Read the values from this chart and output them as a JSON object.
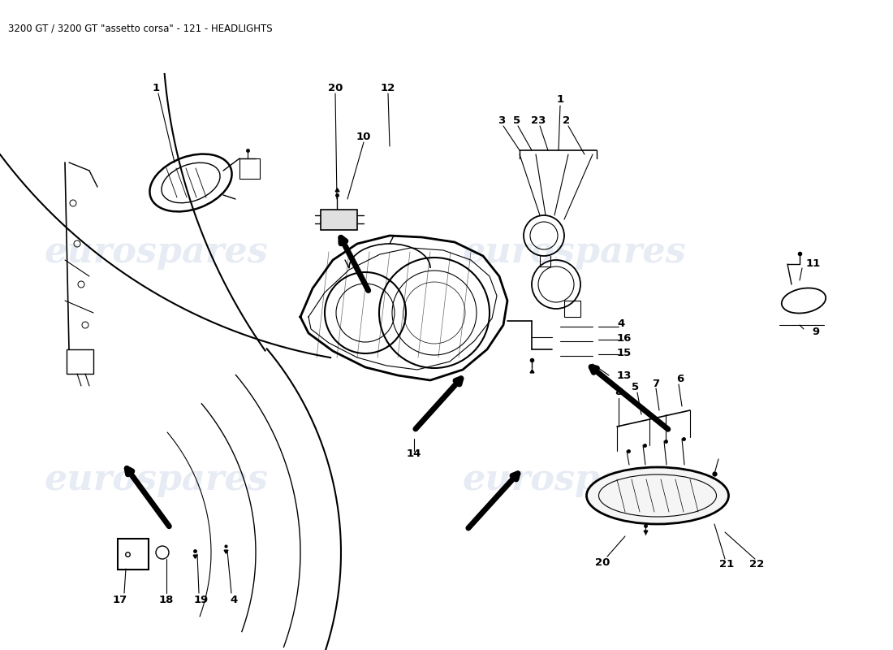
{
  "title": "3200 GT / 3200 GT \"assetto corsa\" - 121 - HEADLIGHTS",
  "title_fontsize": 8.5,
  "title_color": "#000000",
  "bg_color": "#ffffff",
  "watermark_text": "eurospares",
  "watermark_color": "#c8d4e8",
  "watermark_alpha": 0.45,
  "fig_width": 11.0,
  "fig_height": 8.0,
  "dpi": 100
}
